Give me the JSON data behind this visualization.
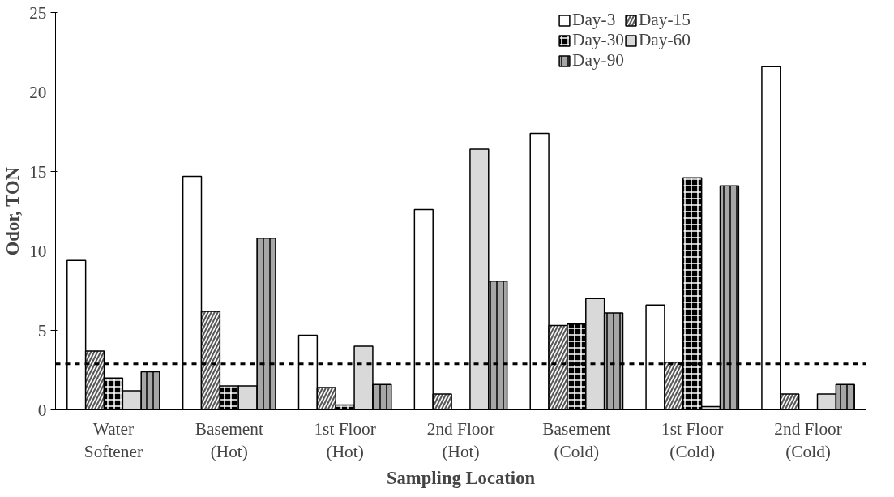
{
  "chart_data": {
    "type": "bar",
    "xlabel": "Sampling Location",
    "ylabel": "Odor, TON",
    "categories": [
      "Water\nSoftener",
      "Basement\n(Hot)",
      "1st Floor\n(Hot)",
      "2nd Floor\n(Hot)",
      "Basement\n(Cold)",
      "1st Floor\n(Cold)",
      "2nd Floor\n(Cold)"
    ],
    "series": [
      {
        "name": "Day-3",
        "color": "#ffffff",
        "values": [
          9.4,
          14.7,
          4.7,
          12.6,
          17.4,
          6.6,
          21.6
        ]
      },
      {
        "name": "Day-15",
        "color": "#595959",
        "values": [
          3.7,
          6.2,
          1.4,
          1.0,
          5.3,
          3.0,
          1.0
        ]
      },
      {
        "name": "Day-30",
        "color": "#000000",
        "values": [
          2.0,
          1.5,
          0.3,
          0,
          5.4,
          14.6,
          0
        ]
      },
      {
        "name": "Day-60",
        "color": "#d9d9d9",
        "values": [
          1.2,
          1.5,
          4.0,
          16.4,
          7.0,
          0.2,
          1.0
        ]
      },
      {
        "name": "Day-90",
        "color": "#a6a6a6",
        "values": [
          2.4,
          10.8,
          1.6,
          8.1,
          6.1,
          14.1,
          1.6
        ]
      }
    ],
    "ylim": [
      0,
      25
    ],
    "yticks": [
      0,
      5,
      10,
      15,
      20,
      25
    ],
    "grid": false,
    "legend": "top right",
    "ref_lines": [
      {
        "axis": "y",
        "value": 2.9,
        "line_style": "dashed",
        "color": "#000000"
      }
    ]
  }
}
